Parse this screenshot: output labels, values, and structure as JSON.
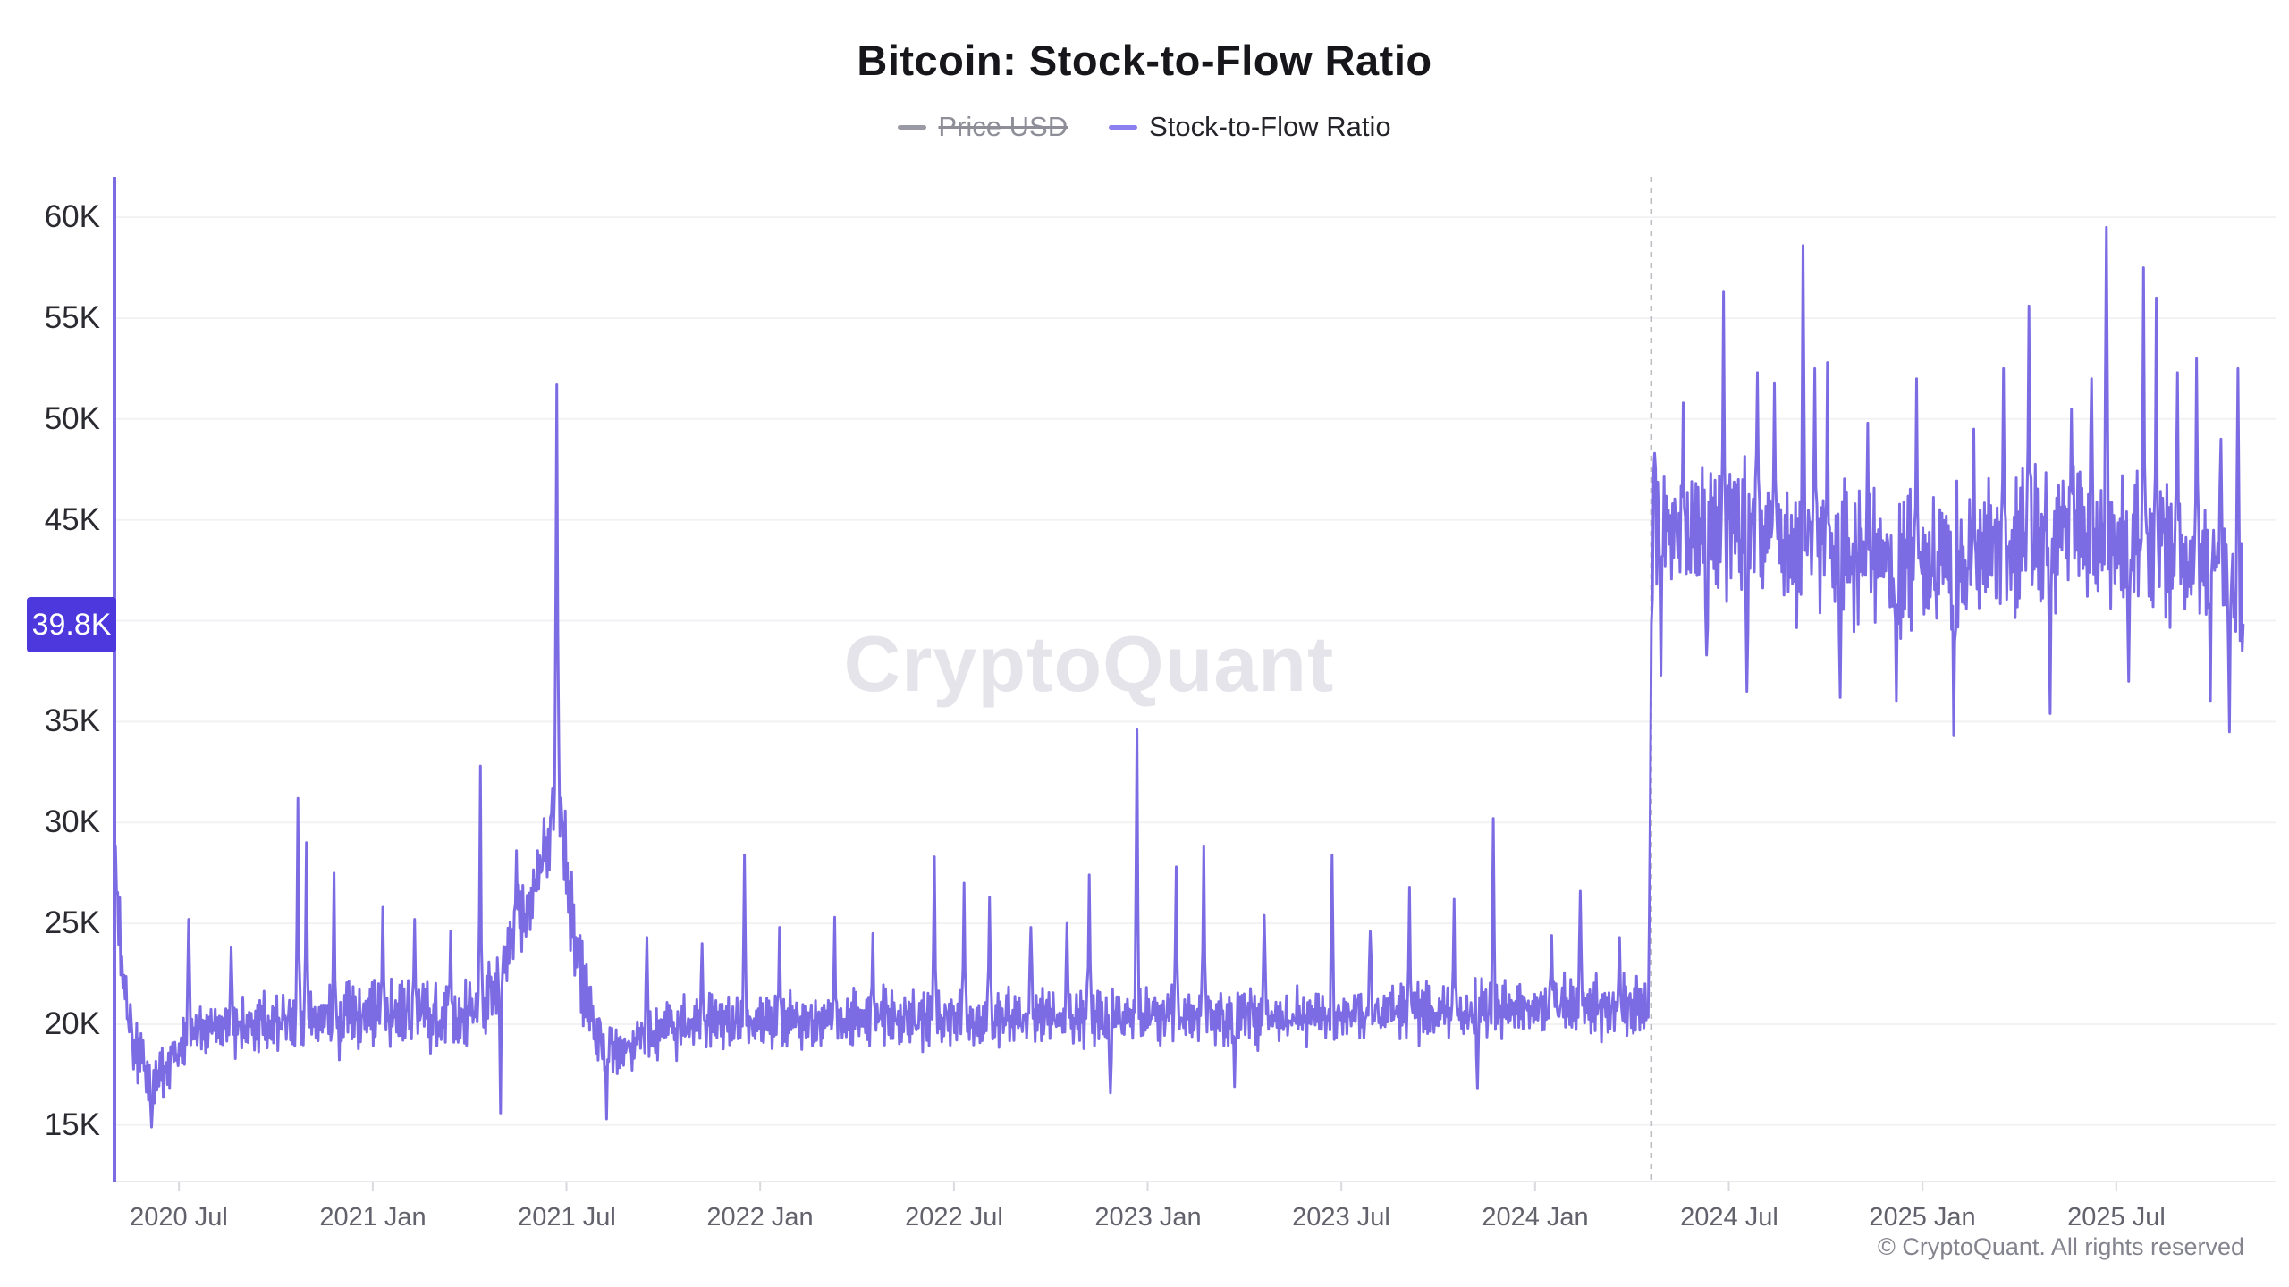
{
  "header": {
    "title": "Bitcoin: Stock-to-Flow Ratio"
  },
  "legend": {
    "items": [
      {
        "label": "Price USD",
        "color": "#9a9aa4",
        "disabled": true
      },
      {
        "label": "Stock-to-Flow Ratio",
        "color": "#8c7ff0",
        "disabled": false
      }
    ]
  },
  "watermark": {
    "text": "CryptoQuant",
    "color": "#e4e4ea"
  },
  "footer": {
    "copyright": "© CryptoQuant. All rights reserved"
  },
  "chart_data": {
    "type": "line",
    "title": "Bitcoin: Stock-to-Flow Ratio",
    "x_unit": "months_since_2020-05-01",
    "time_range": {
      "start": "2020-05",
      "end": "2025-11"
    },
    "grid": "horizontal",
    "x_axis": {
      "ticks": [
        {
          "label": "2020 Jul",
          "m": 2
        },
        {
          "label": "2021 Jan",
          "m": 8
        },
        {
          "label": "2021 Jul",
          "m": 14
        },
        {
          "label": "2022 Jan",
          "m": 20
        },
        {
          "label": "2022 Jul",
          "m": 26
        },
        {
          "label": "2023 Jan",
          "m": 32
        },
        {
          "label": "2023 Jul",
          "m": 38
        },
        {
          "label": "2024 Jan",
          "m": 44
        },
        {
          "label": "2024 Jul",
          "m": 50
        },
        {
          "label": "2025 Jan",
          "m": 56
        },
        {
          "label": "2025 Jul",
          "m": 62
        }
      ],
      "line_color": "#e8e8ed",
      "tick_color": "#d9d9de",
      "label_color": "#62626c"
    },
    "y_axis": {
      "tick_labels": [
        "15K",
        "20K",
        "25K",
        "30K",
        "35K",
        "40K",
        "45K",
        "50K",
        "55K",
        "60K"
      ],
      "tick_values": [
        15000,
        20000,
        25000,
        30000,
        35000,
        40000,
        45000,
        50000,
        55000,
        60000
      ],
      "range_axis_units": [
        12200,
        62000
      ],
      "axis_line_color": "#7c6ce4",
      "gridline_color": "#f2f2f4",
      "latest_value_badge": {
        "label": "39.8K",
        "value": 39800,
        "bg": "#4c38dc",
        "text_color": "#ffffff"
      }
    },
    "halving_marker": {
      "date": "2024-04-20",
      "m": 47.6,
      "style": "dashed",
      "color": "#bdbdc4"
    },
    "series": [
      {
        "name": "Stock-to-Flow Ratio",
        "color": "#7c6ce4",
        "visible": true,
        "axis_units": "K",
        "last_value": 39800,
        "baseline_anchors": [
          [
            0,
            27.5
          ],
          [
            0.2,
            23.5
          ],
          [
            0.5,
            20.0
          ],
          [
            0.9,
            17.8
          ],
          [
            1.4,
            17.4
          ],
          [
            2.2,
            19.3
          ],
          [
            3,
            19.8
          ],
          [
            5,
            20.0
          ],
          [
            8,
            20.4
          ],
          [
            10.5,
            20.6
          ],
          [
            11.6,
            21.3
          ],
          [
            12.3,
            24.3
          ],
          [
            13.1,
            26.5
          ],
          [
            13.5,
            29.5
          ],
          [
            13.72,
            33.0
          ],
          [
            13.95,
            29.0
          ],
          [
            14.3,
            23.5
          ],
          [
            14.9,
            19.6
          ],
          [
            15.6,
            18.8
          ],
          [
            17,
            19.8
          ],
          [
            20,
            20.3
          ],
          [
            24,
            20.3
          ],
          [
            28,
            20.4
          ],
          [
            32,
            20.4
          ],
          [
            36,
            20.4
          ],
          [
            40,
            20.6
          ],
          [
            44,
            20.9
          ],
          [
            47.52,
            20.9
          ],
          [
            47.62,
            44.5
          ],
          [
            48.5,
            44.8
          ],
          [
            52,
            44.0
          ],
          [
            55,
            42.8
          ],
          [
            57,
            42.6
          ],
          [
            59,
            43.8
          ],
          [
            61,
            44.3
          ],
          [
            63,
            43.8
          ],
          [
            65.3,
            43.0
          ],
          [
            65.95,
            40.0
          ]
        ],
        "band_halfwidth_anchors": [
          [
            0,
            2.3
          ],
          [
            1,
            1.7
          ],
          [
            2,
            1.3
          ],
          [
            12.5,
            2.0
          ],
          [
            13.8,
            2.4
          ],
          [
            14.6,
            1.8
          ],
          [
            16,
            1.4
          ],
          [
            46,
            1.4
          ],
          [
            47.5,
            1.5
          ],
          [
            47.7,
            3.3
          ],
          [
            56,
            3.2
          ],
          [
            65.9,
            3.3
          ]
        ],
        "spikes": [
          [
            0.03,
            28.8
          ],
          [
            1.15,
            14.9
          ],
          [
            2.3,
            25.2
          ],
          [
            3.6,
            23.8
          ],
          [
            5.68,
            31.2
          ],
          [
            5.95,
            29.0
          ],
          [
            6.8,
            27.5
          ],
          [
            8.3,
            25.8
          ],
          [
            9.3,
            25.2
          ],
          [
            10.4,
            24.6
          ],
          [
            11.35,
            32.8
          ],
          [
            11.95,
            15.6
          ],
          [
            12.45,
            28.6
          ],
          [
            13.7,
            51.7
          ],
          [
            15.25,
            15.3
          ],
          [
            16.5,
            24.3
          ],
          [
            18.2,
            24.0
          ],
          [
            19.5,
            28.4
          ],
          [
            20.6,
            24.8
          ],
          [
            22.3,
            25.3
          ],
          [
            23.5,
            24.5
          ],
          [
            25.4,
            28.3
          ],
          [
            26.3,
            27.0
          ],
          [
            27.1,
            26.3
          ],
          [
            28.4,
            24.8
          ],
          [
            29.5,
            25.0
          ],
          [
            30.2,
            27.4
          ],
          [
            30.85,
            16.6
          ],
          [
            31.66,
            34.6
          ],
          [
            32.9,
            27.8
          ],
          [
            33.75,
            28.8
          ],
          [
            34.7,
            16.9
          ],
          [
            35.6,
            25.4
          ],
          [
            37.7,
            28.4
          ],
          [
            38.9,
            24.6
          ],
          [
            40.1,
            26.8
          ],
          [
            41.5,
            26.2
          ],
          [
            42.2,
            16.8
          ],
          [
            42.72,
            30.2
          ],
          [
            44.5,
            24.4
          ],
          [
            45.4,
            26.6
          ],
          [
            46.6,
            24.3
          ],
          [
            47.7,
            48.3
          ],
          [
            47.9,
            37.3
          ],
          [
            48.6,
            50.8
          ],
          [
            49.3,
            38.3
          ],
          [
            49.85,
            56.3
          ],
          [
            50.55,
            36.5
          ],
          [
            50.9,
            52.3
          ],
          [
            51.4,
            51.8
          ],
          [
            52.3,
            58.6
          ],
          [
            52.65,
            52.5
          ],
          [
            53.05,
            52.8
          ],
          [
            53.45,
            36.2
          ],
          [
            54.3,
            49.8
          ],
          [
            55.2,
            36.0
          ],
          [
            55.8,
            52.0
          ],
          [
            56.95,
            34.3
          ],
          [
            57.6,
            49.5
          ],
          [
            58.5,
            52.5
          ],
          [
            59.3,
            55.6
          ],
          [
            59.95,
            35.4
          ],
          [
            60.6,
            50.5
          ],
          [
            61.25,
            52.0
          ],
          [
            61.7,
            59.5
          ],
          [
            62.4,
            37.0
          ],
          [
            62.85,
            57.5
          ],
          [
            63.25,
            56.0
          ],
          [
            63.9,
            52.3
          ],
          [
            64.5,
            53.0
          ],
          [
            64.9,
            36.0
          ],
          [
            65.25,
            49.0
          ],
          [
            65.5,
            34.5
          ],
          [
            65.78,
            52.5
          ]
        ]
      }
    ]
  }
}
